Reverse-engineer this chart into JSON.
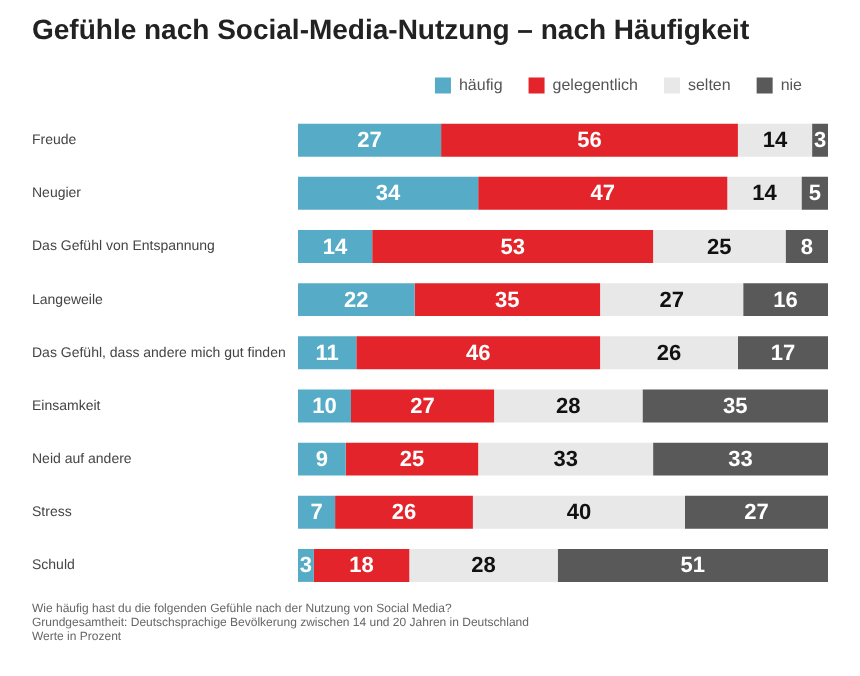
{
  "chart_data": {
    "type": "bar",
    "orientation": "horizontal",
    "stacked": true,
    "title": "Gefühle nach Social-Media-Nutzung – nach Häufigkeit",
    "categories": [
      "Freude",
      "Neugier",
      "Das Gefühl von Entspannung",
      "Langeweile",
      "Das Gefühl, dass andere mich gut finden",
      "Einsamkeit",
      "Neid auf andere",
      "Stress",
      "Schuld"
    ],
    "series": [
      {
        "name": "häufig",
        "color": "#56acc6",
        "values": [
          27,
          34,
          14,
          22,
          11,
          10,
          9,
          7,
          3
        ]
      },
      {
        "name": "gelegentlich",
        "color": "#e3242b",
        "values": [
          56,
          47,
          53,
          35,
          46,
          27,
          25,
          26,
          18
        ]
      },
      {
        "name": "selten",
        "color": "#e8e8e8",
        "values": [
          14,
          14,
          25,
          27,
          26,
          28,
          33,
          40,
          28
        ]
      },
      {
        "name": "nie",
        "color": "#595959",
        "values": [
          3,
          5,
          8,
          16,
          17,
          35,
          33,
          27,
          51
        ]
      }
    ],
    "data_labels": true,
    "legend": "top right",
    "annotations": [
      "Wie häufig hast du die folgenden Gefühle nach der Nutzung von Social Media?",
      "Grundgesamtheit: Deutschsprachige Bevölkerung zwischen 14 und 20 Jahren in Deutschland",
      "Werte in Prozent"
    ]
  }
}
